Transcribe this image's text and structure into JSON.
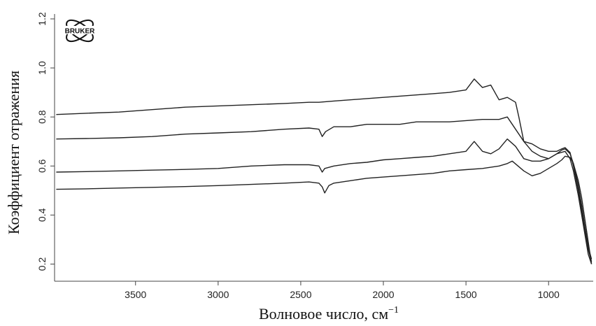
{
  "chart_data": {
    "type": "line",
    "title": "",
    "xlabel_main": "Волновое число, см",
    "xlabel_sup": "−1",
    "ylabel": "Коэффициент отражения",
    "xlim": [
      3990,
      730
    ],
    "ylim": [
      0.13,
      1.22
    ],
    "x_reversed": true,
    "grid": false,
    "legend": "none",
    "x_ticks": [
      3500,
      3000,
      2500,
      2000,
      1500,
      1000
    ],
    "y_ticks": [
      0.2,
      0.4,
      0.6,
      0.8,
      1.0,
      1.2
    ],
    "y_tick_labels": [
      "0.2",
      "0.4",
      "0.6",
      "0.8",
      "1.0",
      "1.2"
    ],
    "logo_text": "BRUKER",
    "line_color": "#222222",
    "series": [
      {
        "x": [
          3980,
          3800,
          3600,
          3400,
          3200,
          3000,
          2800,
          2600,
          2450,
          2390,
          2300,
          2200,
          2100,
          2000,
          1900,
          1800,
          1700,
          1600,
          1500,
          1450,
          1400,
          1350,
          1300,
          1250,
          1200,
          1180,
          1150,
          1100,
          1050,
          1000,
          950,
          900,
          870,
          850,
          820,
          800,
          780,
          760,
          740
        ],
        "y": [
          0.81,
          0.815,
          0.82,
          0.83,
          0.84,
          0.845,
          0.85,
          0.855,
          0.86,
          0.86,
          0.865,
          0.87,
          0.875,
          0.88,
          0.885,
          0.89,
          0.895,
          0.9,
          0.91,
          0.955,
          0.92,
          0.93,
          0.87,
          0.88,
          0.86,
          0.8,
          0.7,
          0.66,
          0.64,
          0.63,
          0.65,
          0.66,
          0.63,
          0.58,
          0.48,
          0.4,
          0.32,
          0.24,
          0.2
        ]
      },
      {
        "x": [
          3980,
          3800,
          3600,
          3400,
          3200,
          3000,
          2800,
          2600,
          2450,
          2390,
          2370,
          2350,
          2300,
          2200,
          2100,
          2000,
          1900,
          1800,
          1700,
          1600,
          1500,
          1400,
          1300,
          1250,
          1200,
          1150,
          1100,
          1050,
          1000,
          950,
          920,
          900,
          870,
          850,
          820,
          800,
          780,
          760,
          740
        ],
        "y": [
          0.71,
          0.712,
          0.715,
          0.72,
          0.73,
          0.735,
          0.74,
          0.75,
          0.755,
          0.75,
          0.72,
          0.74,
          0.76,
          0.76,
          0.77,
          0.77,
          0.77,
          0.78,
          0.78,
          0.78,
          0.785,
          0.79,
          0.79,
          0.8,
          0.75,
          0.7,
          0.69,
          0.67,
          0.66,
          0.66,
          0.67,
          0.675,
          0.655,
          0.6,
          0.5,
          0.42,
          0.34,
          0.26,
          0.21
        ]
      },
      {
        "x": [
          3980,
          3800,
          3600,
          3400,
          3200,
          3000,
          2800,
          2600,
          2450,
          2390,
          2370,
          2355,
          2300,
          2200,
          2100,
          2000,
          1900,
          1800,
          1700,
          1600,
          1500,
          1450,
          1400,
          1350,
          1300,
          1250,
          1200,
          1150,
          1100,
          1050,
          1000,
          950,
          920,
          900,
          870,
          850,
          820,
          800,
          780,
          760,
          740
        ],
        "y": [
          0.575,
          0.577,
          0.58,
          0.583,
          0.586,
          0.59,
          0.6,
          0.605,
          0.605,
          0.6,
          0.575,
          0.59,
          0.6,
          0.61,
          0.615,
          0.625,
          0.63,
          0.635,
          0.64,
          0.65,
          0.66,
          0.7,
          0.66,
          0.65,
          0.67,
          0.71,
          0.68,
          0.63,
          0.62,
          0.62,
          0.63,
          0.65,
          0.665,
          0.67,
          0.65,
          0.61,
          0.52,
          0.44,
          0.35,
          0.27,
          0.22
        ]
      },
      {
        "x": [
          3980,
          3800,
          3600,
          3400,
          3200,
          3000,
          2800,
          2600,
          2450,
          2390,
          2370,
          2355,
          2330,
          2300,
          2200,
          2100,
          2000,
          1900,
          1800,
          1700,
          1600,
          1500,
          1400,
          1300,
          1250,
          1220,
          1150,
          1100,
          1050,
          1000,
          950,
          920,
          900,
          870,
          850,
          820,
          800,
          780,
          760,
          740
        ],
        "y": [
          0.505,
          0.507,
          0.51,
          0.513,
          0.516,
          0.52,
          0.525,
          0.53,
          0.535,
          0.53,
          0.515,
          0.49,
          0.52,
          0.53,
          0.54,
          0.55,
          0.555,
          0.56,
          0.565,
          0.57,
          0.58,
          0.585,
          0.59,
          0.6,
          0.61,
          0.62,
          0.58,
          0.56,
          0.57,
          0.59,
          0.61,
          0.625,
          0.64,
          0.635,
          0.61,
          0.54,
          0.47,
          0.38,
          0.29,
          0.2
        ]
      }
    ]
  }
}
